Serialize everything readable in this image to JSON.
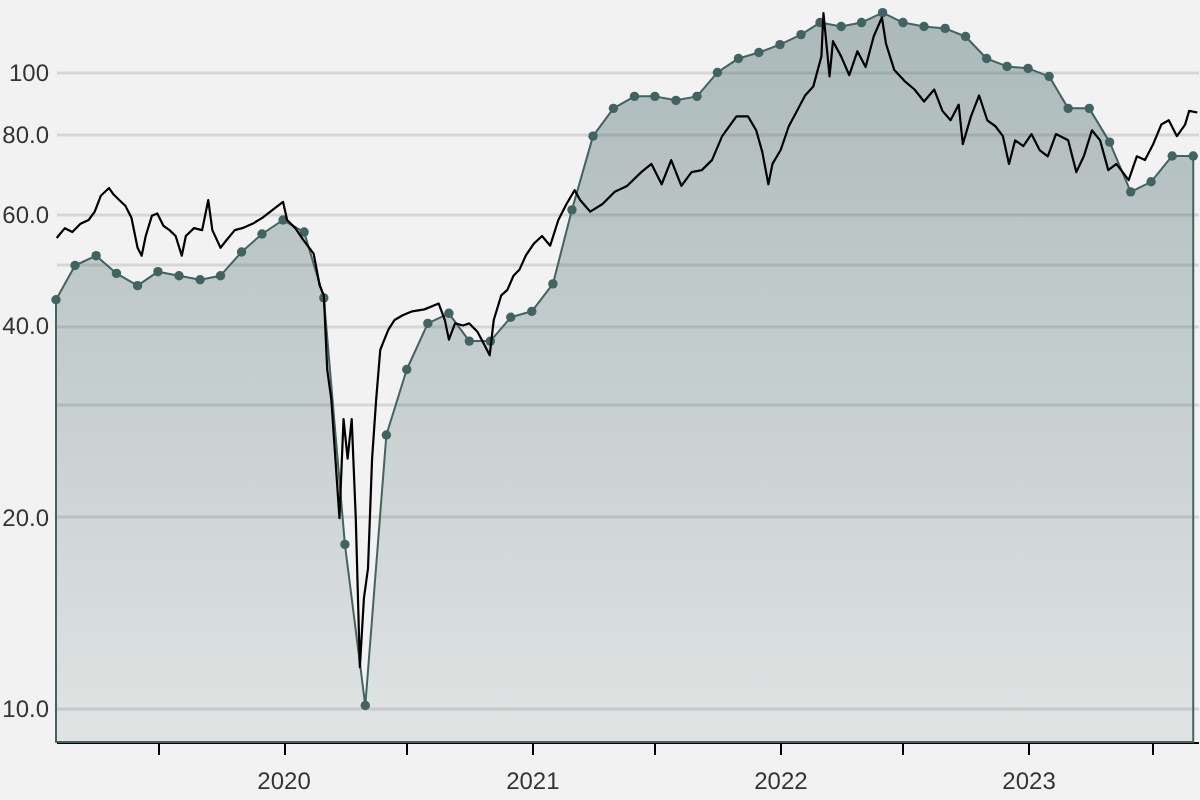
{
  "chart_data": {
    "type": "area",
    "log": "y",
    "grid": "y",
    "xlim": [
      "2019-02-01",
      "2023-09-08"
    ],
    "xticks": [
      {
        "value": "2019-07-01",
        "label": null
      },
      {
        "value": "2020-01-01",
        "label": "2020"
      },
      {
        "value": "2020-07-01",
        "label": null
      },
      {
        "value": "2021-01-01",
        "label": "2021"
      },
      {
        "value": "2021-07-01",
        "label": null
      },
      {
        "value": "2022-01-01",
        "label": "2022"
      },
      {
        "value": "2022-07-01",
        "label": null
      },
      {
        "value": "2023-01-01",
        "label": "2023"
      },
      {
        "value": "2023-07-01",
        "label": null
      }
    ],
    "ylim": [
      8.85,
      130
    ],
    "yticks": [
      {
        "value": 10,
        "label": "10.0"
      },
      {
        "value": 20,
        "label": "20.0"
      },
      {
        "value": 30,
        "label": null
      },
      {
        "value": 40,
        "label": "40.0"
      },
      {
        "value": 50,
        "label": null
      },
      {
        "value": 60,
        "label": "60.0"
      },
      {
        "value": 80,
        "label": "80.0"
      },
      {
        "value": 100,
        "label": "100"
      }
    ],
    "series": [
      {
        "color": "#3f6462",
        "marker": "circle",
        "x": [
          "2019-02-01",
          "2019-03-01",
          "2019-04-01",
          "2019-05-01",
          "2019-06-01",
          "2019-07-01",
          "2019-08-01",
          "2019-09-01",
          "2019-10-01",
          "2019-11-01",
          "2019-12-01",
          "2020-01-01",
          "2020-02-01",
          "2020-03-01",
          "2020-04-01",
          "2020-05-01",
          "2020-06-01",
          "2020-07-01",
          "2020-08-01",
          "2020-09-01",
          "2020-10-01",
          "2020-11-01",
          "2020-12-01",
          "2021-01-01",
          "2021-02-01",
          "2021-03-01",
          "2021-04-01",
          "2021-05-01",
          "2021-06-01",
          "2021-07-01",
          "2021-08-01",
          "2021-09-01",
          "2021-10-01",
          "2021-11-01",
          "2021-12-01",
          "2022-01-01",
          "2022-02-01",
          "2022-03-01",
          "2022-04-01",
          "2022-05-01",
          "2022-06-01",
          "2022-07-01",
          "2022-08-01",
          "2022-09-01",
          "2022-10-01",
          "2022-11-01",
          "2022-12-01",
          "2023-01-01",
          "2023-02-01",
          "2023-03-01",
          "2023-04-01",
          "2023-05-01",
          "2023-06-01",
          "2023-07-01",
          "2023-08-01",
          "2023-09-01"
        ],
        "values": [
          43.9,
          49.7,
          51.5,
          48.3,
          46.2,
          48.6,
          47.9,
          47.2,
          47.9,
          52.2,
          55.7,
          58.6,
          56.1,
          44.2,
          18.1,
          10.1,
          26.9,
          34.1,
          40.3,
          41.8,
          37.8,
          37.8,
          41.2,
          42.1,
          46.5,
          60.8,
          79.4,
          87.8,
          91.7,
          91.7,
          90.4,
          91.7,
          100,
          105.2,
          107.5,
          110.6,
          114.7,
          119.8,
          118.1,
          119.8,
          124.2,
          119.8,
          118.1,
          117.3,
          113.9,
          105.2,
          102.2,
          101.5,
          98.6,
          87.8,
          87.8,
          77.7,
          64.9,
          67.3,
          73.9,
          73.9
        ]
      },
      {
        "type": "line",
        "color": "#000000",
        "marker": "none",
        "x": [
          "2019-02-02",
          "2019-02-14",
          "2019-02-25",
          "2019-03-09",
          "2019-03-21",
          "2019-03-30",
          "2019-04-08",
          "2019-04-20",
          "2019-04-26",
          "2019-05-05",
          "2019-05-14",
          "2019-05-23",
          "2019-06-01",
          "2019-06-07",
          "2019-06-13",
          "2019-06-22",
          "2019-06-30",
          "2019-07-09",
          "2019-07-18",
          "2019-07-27",
          "2019-08-05",
          "2019-08-11",
          "2019-08-23",
          "2019-09-04",
          "2019-09-13",
          "2019-09-19",
          "2019-10-01",
          "2019-10-10",
          "2019-10-22",
          "2019-11-02",
          "2019-11-17",
          "2019-12-02",
          "2019-12-20",
          "2020-01-01",
          "2020-01-07",
          "2020-01-19",
          "2020-01-31",
          "2020-02-15",
          "2020-02-24",
          "2020-03-01",
          "2020-03-06",
          "2020-03-12",
          "2020-03-18",
          "2020-03-24",
          "2020-03-30",
          "2020-04-05",
          "2020-04-11",
          "2020-04-17",
          "2020-04-23",
          "2020-04-29",
          "2020-05-05",
          "2020-05-11",
          "2020-05-17",
          "2020-05-23",
          "2020-05-29",
          "2020-06-04",
          "2020-06-13",
          "2020-06-25",
          "2020-07-09",
          "2020-07-27",
          "2020-08-17",
          "2020-08-26",
          "2020-09-01",
          "2020-09-10",
          "2020-09-22",
          "2020-10-01",
          "2020-10-13",
          "2020-10-22",
          "2020-10-31",
          "2020-11-06",
          "2020-11-17",
          "2020-11-26",
          "2020-12-05",
          "2020-12-14",
          "2020-12-23",
          "2021-01-04",
          "2021-01-16",
          "2021-01-28",
          "2021-02-09",
          "2021-02-21",
          "2021-03-05",
          "2021-03-13",
          "2021-03-28",
          "2021-04-15",
          "2021-05-03",
          "2021-05-21",
          "2021-06-11",
          "2021-06-26",
          "2021-07-11",
          "2021-07-25",
          "2021-08-09",
          "2021-08-24",
          "2021-09-08",
          "2021-09-23",
          "2021-10-08",
          "2021-10-29",
          "2021-11-15",
          "2021-11-27",
          "2021-12-06",
          "2021-12-15",
          "2021-12-21",
          "2022-01-02",
          "2022-01-14",
          "2022-01-26",
          "2022-02-07",
          "2022-02-19",
          "2022-03-03",
          "2022-03-06",
          "2022-03-15",
          "2022-03-20",
          "2022-04-01",
          "2022-04-13",
          "2022-04-25",
          "2022-05-07",
          "2022-05-19",
          "2022-05-31",
          "2022-06-06",
          "2022-06-18",
          "2022-07-03",
          "2022-07-18",
          "2022-08-01",
          "2022-08-16",
          "2022-08-28",
          "2022-09-09",
          "2022-09-21",
          "2022-09-27",
          "2022-10-09",
          "2022-10-21",
          "2022-11-02",
          "2022-11-14",
          "2022-11-25",
          "2022-12-04",
          "2022-12-13",
          "2022-12-25",
          "2023-01-06",
          "2023-01-18",
          "2023-01-30",
          "2023-02-11",
          "2023-03-01",
          "2023-03-13",
          "2023-03-24",
          "2023-04-05",
          "2023-04-17",
          "2023-04-29",
          "2023-05-11",
          "2023-05-29",
          "2023-06-10",
          "2023-06-22",
          "2023-07-04",
          "2023-07-16",
          "2023-07-27",
          "2023-08-08",
          "2023-08-20",
          "2023-08-26",
          "2023-09-07"
        ],
        "values": [
          54.9,
          56.9,
          56.1,
          57.8,
          58.6,
          60.4,
          64,
          65.8,
          64.4,
          63,
          61.7,
          59.1,
          53,
          51.5,
          55.3,
          59.5,
          60,
          57.4,
          56.5,
          55.3,
          51.5,
          55.3,
          56.9,
          56.5,
          63,
          56.5,
          53,
          54.5,
          56.5,
          56.9,
          57.8,
          59.1,
          61.2,
          62.6,
          58.6,
          56.9,
          54.5,
          51.9,
          46.2,
          44.6,
          34.1,
          30.6,
          24.7,
          19.9,
          28.5,
          24.7,
          28.5,
          19.9,
          11.6,
          14.9,
          16.6,
          24.7,
          30.6,
          36.6,
          38,
          39.4,
          40.8,
          41.5,
          42.1,
          42.4,
          43.3,
          40.8,
          38,
          40.3,
          40,
          40.3,
          39.1,
          37.5,
          35.9,
          40.8,
          44.6,
          45.5,
          47.9,
          49,
          51.5,
          53.8,
          55.3,
          53.4,
          58.6,
          62.1,
          65.3,
          63,
          60.4,
          62.1,
          64.9,
          66.3,
          69.7,
          71.8,
          66.7,
          72.8,
          66.3,
          69.7,
          70.2,
          72.8,
          79.4,
          85.3,
          85.3,
          81.1,
          75,
          66.7,
          71.8,
          75.5,
          82.3,
          87,
          92,
          95,
          106,
          124,
          98.6,
          112,
          106,
          99,
          108,
          102,
          114,
          122,
          111,
          101,
          97,
          94,
          90,
          94,
          87,
          84.1,
          89,
          77.1,
          85.3,
          92,
          84.1,
          82.3,
          79.4,
          71.8,
          78.2,
          76.6,
          80,
          75.5,
          73.8,
          80,
          78.2,
          69.7,
          73.8,
          81.1,
          78.2,
          70.2,
          71.8,
          67.7,
          73.8,
          72.8,
          77.1,
          82.8,
          84.1,
          79.4,
          82.8,
          87,
          86.5
        ]
      }
    ]
  }
}
